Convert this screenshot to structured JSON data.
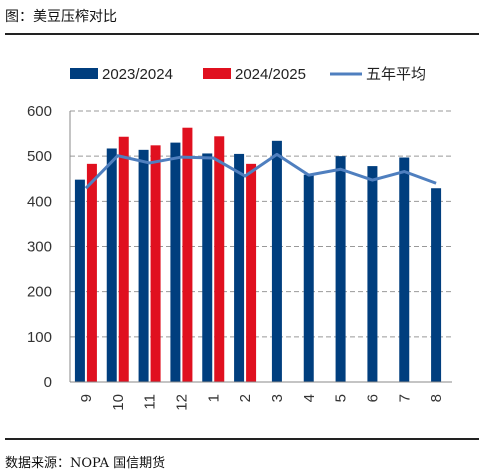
{
  "figure_title": "图：美豆压榨对比",
  "source_note": "数据来源：NOPA 国信期货",
  "colors": {
    "series_2023": "#003e7e",
    "series_2024": "#e0101f",
    "avg_line": "#4f7fbf",
    "grid": "#999999"
  },
  "chart_data": {
    "type": "bar",
    "title": "",
    "xlabel": "",
    "ylabel": "",
    "ylim": [
      0,
      600
    ],
    "yticks": [
      0,
      100,
      200,
      300,
      400,
      500,
      600
    ],
    "grid": "horizontal dashed",
    "legend_position": "top",
    "categories": [
      "9",
      "10",
      "11",
      "12",
      "1",
      "2",
      "3",
      "4",
      "5",
      "6",
      "7",
      "8"
    ],
    "series": [
      {
        "name": "2023/2024",
        "kind": "bar",
        "color": "#003e7e",
        "values": [
          448,
          517,
          514,
          530,
          506,
          505,
          534,
          459,
          500,
          478,
          497,
          429
        ]
      },
      {
        "name": "2024/2025",
        "kind": "bar",
        "color": "#e0101f",
        "values": [
          483,
          543,
          524,
          563,
          544,
          483,
          null,
          null,
          null,
          null,
          null,
          null
        ]
      },
      {
        "name": "五年平均",
        "kind": "line",
        "color": "#4f7fbf",
        "values": [
          429,
          501,
          485,
          498,
          496,
          456,
          504,
          458,
          471,
          447,
          466,
          440
        ]
      }
    ]
  }
}
